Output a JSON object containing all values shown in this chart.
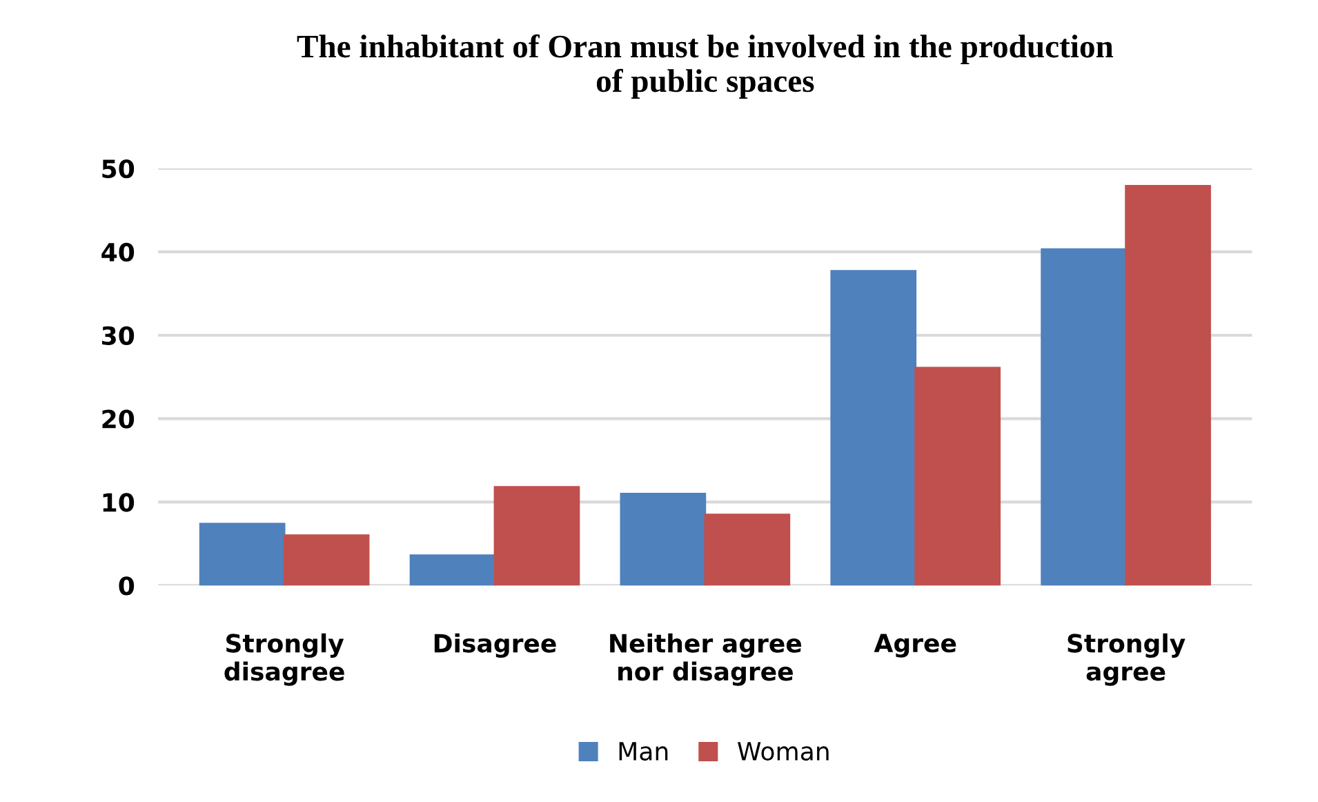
{
  "chart_data": {
    "type": "bar",
    "title": "The inhabitant of Oran must be involved in the production\nof public spaces",
    "categories": [
      "Strongly\ndisagree",
      "Disagree",
      "Neither agree\nnor disagree",
      "Agree",
      "Strongly\nagree"
    ],
    "series": [
      {
        "name": "Man",
        "color": "#4f81bd",
        "values": [
          7.4,
          3.6,
          11,
          37.7,
          40.3
        ]
      },
      {
        "name": "Woman",
        "color": "#c0504d",
        "values": [
          6,
          11.8,
          8.5,
          26.1,
          47.9
        ]
      }
    ],
    "ylim": [
      0,
      50
    ],
    "yticks": [
      0,
      10,
      20,
      30,
      40,
      50
    ],
    "grid": "y",
    "legend": "bottom"
  }
}
